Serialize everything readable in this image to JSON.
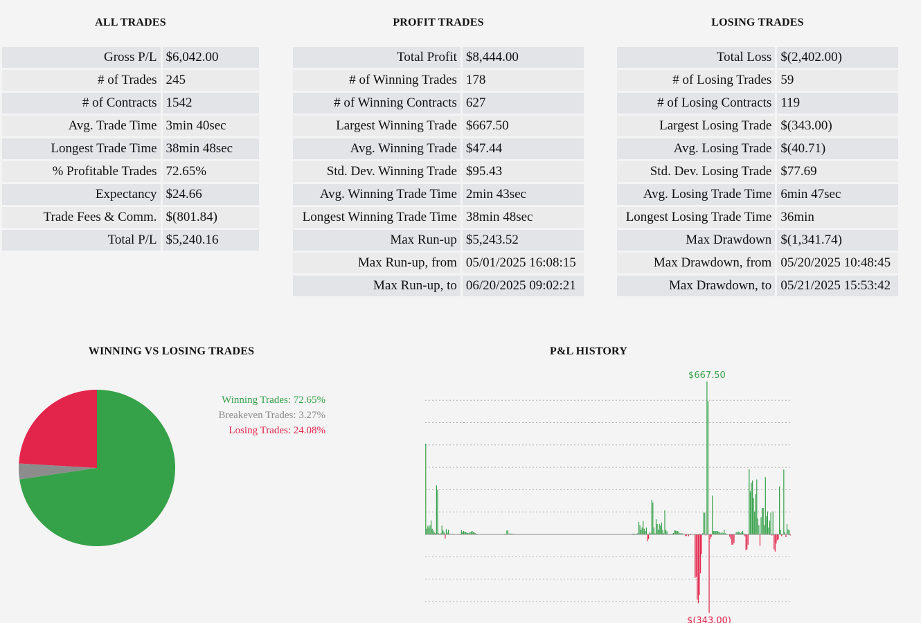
{
  "all_trades": {
    "title": "ALL TRADES",
    "rows": [
      {
        "label": "Gross P/L",
        "value": "$6,042.00"
      },
      {
        "label": "# of Trades",
        "value": "245"
      },
      {
        "label": "# of Contracts",
        "value": "1542"
      },
      {
        "label": "Avg. Trade Time",
        "value": "3min 40sec"
      },
      {
        "label": "Longest Trade Time",
        "value": "38min 48sec"
      },
      {
        "label": "% Profitable Trades",
        "value": "72.65%"
      },
      {
        "label": "Expectancy",
        "value": "$24.66"
      },
      {
        "label": "Trade Fees & Comm.",
        "value": "$(801.84)"
      },
      {
        "label": "Total P/L",
        "value": "$5,240.16"
      }
    ]
  },
  "profit_trades": {
    "title": "PROFIT TRADES",
    "rows": [
      {
        "label": "Total Profit",
        "value": "$8,444.00"
      },
      {
        "label": "# of Winning Trades",
        "value": "178"
      },
      {
        "label": "# of Winning Contracts",
        "value": "627"
      },
      {
        "label": "Largest Winning Trade",
        "value": "$667.50"
      },
      {
        "label": "Avg. Winning Trade",
        "value": "$47.44"
      },
      {
        "label": "Std. Dev. Winning Trade",
        "value": "$95.43"
      },
      {
        "label": "Avg. Winning Trade Time",
        "value": "2min 43sec"
      },
      {
        "label": "Longest Winning Trade Time",
        "value": "38min 48sec"
      },
      {
        "label": "Max Run-up",
        "value": "$5,243.52"
      },
      {
        "label": "Max Run-up, from",
        "value": "05/01/2025 16:08:15"
      },
      {
        "label": "Max Run-up, to",
        "value": "06/20/2025 09:02:21"
      }
    ]
  },
  "losing_trades": {
    "title": "LOSING TRADES",
    "rows": [
      {
        "label": "Total Loss",
        "value": "$(2,402.00)"
      },
      {
        "label": "# of Losing Trades",
        "value": "59"
      },
      {
        "label": "# of Losing Contracts",
        "value": "119"
      },
      {
        "label": "Largest Losing Trade",
        "value": "$(343.00)"
      },
      {
        "label": "Avg. Losing Trade",
        "value": "$(40.71)"
      },
      {
        "label": "Std. Dev. Losing Trade",
        "value": "$77.69"
      },
      {
        "label": "Avg. Losing Trade Time",
        "value": "6min 47sec"
      },
      {
        "label": "Longest Losing Trade Time",
        "value": "36min"
      },
      {
        "label": "Max Drawdown",
        "value": "$(1,341.74)"
      },
      {
        "label": "Max Drawdown, from",
        "value": "05/20/2025 10:48:45"
      },
      {
        "label": "Max Drawdown, to",
        "value": "05/21/2025 15:53:42"
      }
    ]
  },
  "colors": {
    "win": "#35a148",
    "loss": "#e3244b",
    "breakeven": "#8c8c8c"
  },
  "chart_data": [
    {
      "type": "pie",
      "title": "WINNING VS LOSING TRADES",
      "slices": [
        {
          "name": "Winning Trades",
          "value": 72.65,
          "label": "Winning Trades: 72.65%",
          "color": "#35a148"
        },
        {
          "name": "Breakeven Trades",
          "value": 3.27,
          "label": "Breakeven Trades: 3.27%",
          "color": "#8c8c8c"
        },
        {
          "name": "Losing Trades",
          "value": 24.08,
          "label": "Losing Trades: 24.08%",
          "color": "#e3244b"
        }
      ],
      "legend": "right"
    },
    {
      "type": "bar",
      "title": "P&L HISTORY",
      "xlabel": "",
      "ylabel": "",
      "ylim": [
        -400,
        700
      ],
      "grid": true,
      "annotations": {
        "max_label": "$667.50",
        "min_label": "$(343.00)"
      },
      "values": [
        396,
        25,
        38,
        31,
        41,
        61,
        25,
        17,
        8,
        5,
        214,
        195,
        5,
        3,
        5,
        38,
        17,
        10,
        -18,
        23,
        8,
        20,
        3,
        2,
        1,
        3,
        2,
        1,
        0,
        0,
        0,
        0,
        3,
        18,
        10,
        15,
        12,
        10,
        8,
        6,
        5,
        10,
        12,
        15,
        10,
        8,
        5,
        3,
        2,
        1,
        0,
        0,
        0,
        0,
        0,
        0,
        0,
        0,
        0,
        0,
        0,
        0,
        0,
        0,
        0,
        0,
        0,
        0,
        0,
        0,
        0,
        0,
        0,
        3,
        3,
        17,
        17,
        2,
        5,
        3,
        3,
        2,
        1,
        0,
        0,
        0,
        0,
        0,
        0,
        0,
        0,
        0,
        0,
        0,
        0,
        0,
        0,
        0,
        0,
        0,
        0,
        0,
        0,
        0,
        0,
        0,
        0,
        0,
        0,
        0,
        0,
        0,
        0,
        0,
        0,
        0,
        0,
        0,
        0,
        0,
        0,
        0,
        0,
        0,
        0,
        0,
        0,
        0,
        0,
        0,
        0,
        0,
        0,
        0,
        0,
        0,
        0,
        0,
        0,
        0,
        0,
        0,
        0,
        0,
        0,
        0,
        0,
        0,
        0,
        0,
        0,
        0,
        0,
        0,
        0,
        0,
        0,
        0,
        0,
        0,
        0,
        0,
        0,
        0,
        0,
        0,
        0,
        0,
        0,
        0,
        0,
        0,
        0,
        0,
        0,
        0,
        0,
        0,
        0,
        0,
        0,
        0,
        0,
        0,
        0,
        0,
        0,
        0,
        0,
        0,
        0,
        3,
        3,
        3,
        3,
        3,
        5,
        55,
        40,
        20,
        30,
        59,
        25,
        15,
        30,
        -30,
        -20,
        10,
        5,
        151,
        140,
        30,
        5,
        66,
        45,
        20,
        46,
        38,
        52,
        20,
        5,
        105,
        20,
        14,
        3,
        0,
        0,
        0,
        4,
        6,
        17,
        17,
        15,
        15,
        10,
        5,
        5,
        5,
        0,
        0,
        -7,
        -7,
        0,
        -8,
        0,
        -3,
        0,
        0,
        0,
        -190,
        -185,
        -285,
        -300,
        -265,
        -170,
        -85,
        5,
        95,
        95,
        -5,
        667,
        582,
        -343,
        -20,
        -10,
        170,
        15,
        15,
        14,
        15,
        15,
        10,
        8,
        5,
        10,
        5,
        20,
        5,
        3,
        0,
        0,
        -10,
        -20,
        -45,
        -45,
        -38,
        0,
        10,
        8,
        13,
        10,
        5,
        10,
        15,
        5,
        -8,
        -70,
        -65,
        -45,
        284,
        188,
        225,
        235,
        159,
        100,
        175,
        240,
        70,
        40,
        -50,
        75,
        115,
        115,
        40,
        250,
        80,
        100,
        30,
        60,
        95,
        -5,
        100,
        -66,
        -75,
        -40,
        -26,
        -22,
        210,
        19,
        -8,
        3,
        283,
        10,
        -12,
        45,
        22,
        18,
        -5
      ],
      "raw_values_note": "approximate"
    }
  ]
}
